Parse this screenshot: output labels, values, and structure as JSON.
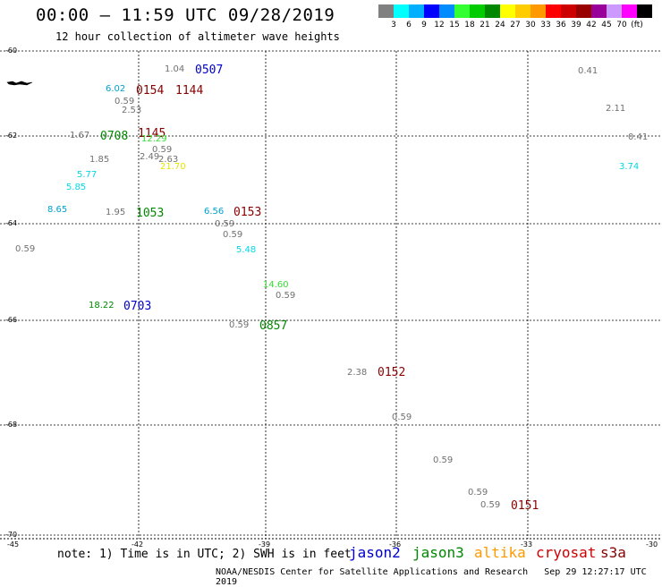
{
  "header": {
    "title": "00:00 – 11:59 UTC 09/28/2019",
    "subtitle": "12 hour collection of altimeter wave heights"
  },
  "legend": {
    "colors": [
      "#808080",
      "#00ffff",
      "#00b0ff",
      "#0000ff",
      "#008cff",
      "#33ff33",
      "#00cc00",
      "#008800",
      "#ffff00",
      "#ffcc00",
      "#ff9900",
      "#ff0000",
      "#cc0000",
      "#990000",
      "#990099",
      "#cc99ff",
      "#ff00ff",
      "#000000"
    ],
    "labels": [
      "3",
      "6",
      "9",
      "12",
      "15",
      "18",
      "21",
      "24",
      "27",
      "30",
      "33",
      "36",
      "39",
      "42",
      "45",
      "70",
      "(ft)"
    ]
  },
  "axes": {
    "y_labels": [
      "-60",
      "-62",
      "-64",
      "-66",
      "-68",
      "-70"
    ],
    "x_labels": [
      "-45",
      "-42",
      "-39",
      "-36",
      "-33",
      "-30"
    ]
  },
  "observations": [
    {
      "text": "1.04",
      "color": "#707070",
      "kind": "val"
    },
    {
      "text": "0507",
      "color": "#0000cc",
      "kind": "tim"
    },
    {
      "text": "0.41",
      "color": "#707070",
      "kind": "val"
    },
    {
      "text": "6.02",
      "color": "#00a0d0",
      "kind": "val"
    },
    {
      "text": "0154",
      "color": "#880000",
      "kind": "tim"
    },
    {
      "text": "1144",
      "color": "#880000",
      "kind": "tim"
    },
    {
      "text": "0.59",
      "color": "#707070",
      "kind": "val"
    },
    {
      "text": "2.53",
      "color": "#707070",
      "kind": "val"
    },
    {
      "text": "2.11",
      "color": "#707070",
      "kind": "val"
    },
    {
      "text": "1.67",
      "color": "#707070",
      "kind": "val"
    },
    {
      "text": "0708",
      "color": "#008800",
      "kind": "tim"
    },
    {
      "text": "1145",
      "color": "#880000",
      "kind": "tim"
    },
    {
      "text": "12.29",
      "color": "#33dd33",
      "kind": "val"
    },
    {
      "text": "0.41",
      "color": "#707070",
      "kind": "val"
    },
    {
      "text": "0.59",
      "color": "#707070",
      "kind": "val"
    },
    {
      "text": "2.49",
      "color": "#707070",
      "kind": "val"
    },
    {
      "text": "2.63",
      "color": "#707070",
      "kind": "val"
    },
    {
      "text": "1.85",
      "color": "#707070",
      "kind": "val"
    },
    {
      "text": "21.70",
      "color": "#e6e600",
      "kind": "val"
    },
    {
      "text": "5.77",
      "color": "#00d8e8",
      "kind": "val"
    },
    {
      "text": "3.74",
      "color": "#00d8e8",
      "kind": "val"
    },
    {
      "text": "5.85",
      "color": "#00d8e8",
      "kind": "val"
    },
    {
      "text": "8.65",
      "color": "#00a0d0",
      "kind": "val"
    },
    {
      "text": "1.95",
      "color": "#707070",
      "kind": "val"
    },
    {
      "text": "1053",
      "color": "#008800",
      "kind": "tim"
    },
    {
      "text": "6.56",
      "color": "#00a0d0",
      "kind": "val"
    },
    {
      "text": "0153",
      "color": "#880000",
      "kind": "tim"
    },
    {
      "text": "0.59",
      "color": "#707070",
      "kind": "val"
    },
    {
      "text": "0.59",
      "color": "#707070",
      "kind": "val"
    },
    {
      "text": "0.59",
      "color": "#707070",
      "kind": "val"
    },
    {
      "text": "5.48",
      "color": "#00d8e8",
      "kind": "val"
    },
    {
      "text": "14.60",
      "color": "#33dd33",
      "kind": "val"
    },
    {
      "text": "0.59",
      "color": "#707070",
      "kind": "val"
    },
    {
      "text": "18.22",
      "color": "#008800",
      "kind": "val"
    },
    {
      "text": "0703",
      "color": "#0000cc",
      "kind": "tim"
    },
    {
      "text": "0.59",
      "color": "#707070",
      "kind": "val"
    },
    {
      "text": "0857",
      "color": "#008800",
      "kind": "tim"
    },
    {
      "text": "2.38",
      "color": "#707070",
      "kind": "val"
    },
    {
      "text": "0152",
      "color": "#880000",
      "kind": "tim"
    },
    {
      "text": "0.59",
      "color": "#707070",
      "kind": "val"
    },
    {
      "text": "0.59",
      "color": "#707070",
      "kind": "val"
    },
    {
      "text": "0.59",
      "color": "#707070",
      "kind": "val"
    },
    {
      "text": "0.59",
      "color": "#707070",
      "kind": "val"
    },
    {
      "text": "0151",
      "color": "#880000",
      "kind": "tim"
    }
  ],
  "footer": {
    "note": "note: 1) Time is in UTC; 2) SWH is in feet",
    "satellites": [
      {
        "name": "jason2",
        "color": "#0000cc"
      },
      {
        "name": "jason3",
        "color": "#008800"
      },
      {
        "name": "altika",
        "color": "#ff9900"
      },
      {
        "name": "cryosat",
        "color": "#cc0000"
      },
      {
        "name": "s3a",
        "color": "#880000"
      }
    ],
    "credit": "NOAA/NESDIS Center for Satellite Applications and Research",
    "timestamp": "Sep 29 12:27:17 UTC 2019"
  }
}
